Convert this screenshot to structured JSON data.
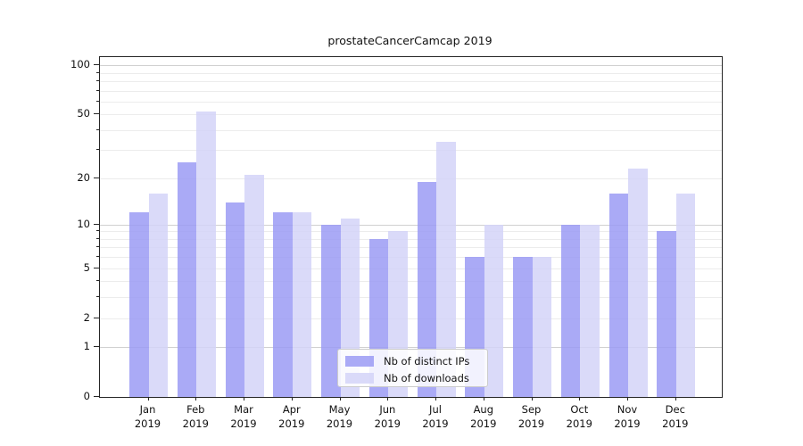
{
  "title": "prostateCancerCamcap 2019",
  "chart_data": {
    "type": "bar",
    "title": "prostateCancerCamcap 2019",
    "categories": [
      "Jan 2019",
      "Feb 2019",
      "Mar 2019",
      "Apr 2019",
      "May 2019",
      "Jun 2019",
      "Jul 2019",
      "Aug 2019",
      "Sep 2019",
      "Oct 2019",
      "Nov 2019",
      "Dec 2019"
    ],
    "series": [
      {
        "name": "Nb of distinct IPs",
        "color": "#9b9bf4",
        "values": [
          12,
          25,
          14,
          12,
          10,
          8,
          19,
          6,
          6,
          10,
          16,
          9
        ]
      },
      {
        "name": "Nb of downloads",
        "color": "#d4d4f8",
        "values": [
          16,
          52,
          21,
          12,
          11,
          9,
          34,
          10,
          6,
          10,
          23,
          16
        ]
      }
    ],
    "xlabel": "",
    "ylabel": "",
    "yscale": "log1p",
    "ylim": [
      0,
      112
    ],
    "yticks_labeled": [
      100,
      50,
      20,
      10,
      5,
      2,
      1,
      0
    ],
    "gridlines_major": [
      1,
      10,
      100
    ],
    "gridlines_minor": [
      2,
      3,
      4,
      5,
      6,
      7,
      8,
      9,
      20,
      30,
      40,
      50,
      60,
      70,
      80,
      90
    ],
    "grid": true,
    "legend_position": "lower-center"
  }
}
